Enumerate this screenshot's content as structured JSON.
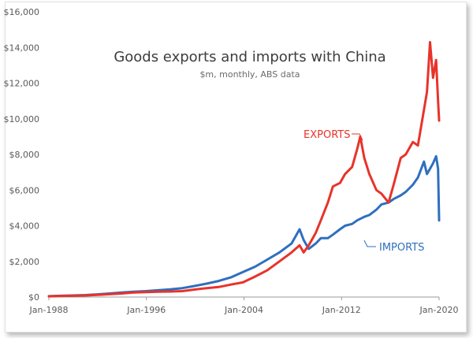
{
  "chart_data": {
    "type": "line",
    "title": "Goods exports and imports with China",
    "subtitle": "$m, monthly, ABS data",
    "xlabel": "",
    "ylabel": "",
    "x_range": [
      "1988-01",
      "2020-03"
    ],
    "ylim": [
      0,
      16000
    ],
    "y_ticks": [
      "$0",
      "$2,000",
      "$4,000",
      "$6,000",
      "$8,000",
      "$10,000",
      "$12,000",
      "$14,000",
      "$16,000"
    ],
    "x_ticks": [
      "Jan-1988",
      "Jan-1996",
      "Jan-2004",
      "Jan-2012",
      "Jan-2020"
    ],
    "grid": false,
    "legend": "inline labels",
    "colors": {
      "exports": "#e8332a",
      "imports": "#2e6fc0"
    },
    "series": [
      {
        "name": "EXPORTS",
        "points": [
          [
            "1988-01",
            40
          ],
          [
            "1989-01",
            60
          ],
          [
            "1990-01",
            70
          ],
          [
            "1991-01",
            90
          ],
          [
            "1992-01",
            120
          ],
          [
            "1993-01",
            160
          ],
          [
            "1994-01",
            200
          ],
          [
            "1995-01",
            250
          ],
          [
            "1996-01",
            280
          ],
          [
            "1997-01",
            300
          ],
          [
            "1998-01",
            310
          ],
          [
            "1999-01",
            330
          ],
          [
            "2000-01",
            420
          ],
          [
            "2001-01",
            500
          ],
          [
            "2002-01",
            560
          ],
          [
            "2003-01",
            700
          ],
          [
            "2004-01",
            820
          ],
          [
            "2005-01",
            1150
          ],
          [
            "2006-01",
            1500
          ],
          [
            "2007-01",
            2000
          ],
          [
            "2008-01",
            2500
          ],
          [
            "2008-09",
            2900
          ],
          [
            "2009-01",
            2500
          ],
          [
            "2009-06",
            2900
          ],
          [
            "2010-01",
            3600
          ],
          [
            "2010-06",
            4300
          ],
          [
            "2011-01",
            5300
          ],
          [
            "2011-06",
            6200
          ],
          [
            "2012-01",
            6400
          ],
          [
            "2012-06",
            6900
          ],
          [
            "2013-01",
            7300
          ],
          [
            "2013-06",
            8300
          ],
          [
            "2013-09",
            9000
          ],
          [
            "2014-01",
            7800
          ],
          [
            "2014-06",
            6900
          ],
          [
            "2015-01",
            6000
          ],
          [
            "2015-06",
            5800
          ],
          [
            "2016-01",
            5300
          ],
          [
            "2016-06",
            6300
          ],
          [
            "2017-01",
            7800
          ],
          [
            "2017-06",
            8000
          ],
          [
            "2018-01",
            8700
          ],
          [
            "2018-06",
            8500
          ],
          [
            "2018-12",
            10500
          ],
          [
            "2019-03",
            11500
          ],
          [
            "2019-06",
            14300
          ],
          [
            "2019-09",
            12300
          ],
          [
            "2019-12",
            13300
          ],
          [
            "2020-02",
            11000
          ],
          [
            "2020-03",
            9900
          ]
        ]
      },
      {
        "name": "IMPORTS",
        "points": [
          [
            "1988-01",
            50
          ],
          [
            "1989-01",
            70
          ],
          [
            "1990-01",
            90
          ],
          [
            "1991-01",
            110
          ],
          [
            "1992-01",
            150
          ],
          [
            "1993-01",
            200
          ],
          [
            "1994-01",
            250
          ],
          [
            "1995-01",
            300
          ],
          [
            "1996-01",
            330
          ],
          [
            "1997-01",
            380
          ],
          [
            "1998-01",
            430
          ],
          [
            "1999-01",
            500
          ],
          [
            "2000-01",
            620
          ],
          [
            "2001-01",
            750
          ],
          [
            "2002-01",
            900
          ],
          [
            "2003-01",
            1100
          ],
          [
            "2004-01",
            1400
          ],
          [
            "2005-01",
            1700
          ],
          [
            "2006-01",
            2100
          ],
          [
            "2007-01",
            2500
          ],
          [
            "2008-01",
            3000
          ],
          [
            "2008-09",
            3800
          ],
          [
            "2009-01",
            3200
          ],
          [
            "2009-06",
            2700
          ],
          [
            "2010-01",
            3000
          ],
          [
            "2010-06",
            3300
          ],
          [
            "2011-01",
            3300
          ],
          [
            "2011-06",
            3500
          ],
          [
            "2012-01",
            3800
          ],
          [
            "2012-06",
            4000
          ],
          [
            "2013-01",
            4100
          ],
          [
            "2013-06",
            4300
          ],
          [
            "2014-01",
            4500
          ],
          [
            "2014-06",
            4600
          ],
          [
            "2015-01",
            4900
          ],
          [
            "2015-06",
            5200
          ],
          [
            "2016-01",
            5300
          ],
          [
            "2016-06",
            5500
          ],
          [
            "2017-01",
            5700
          ],
          [
            "2017-06",
            5900
          ],
          [
            "2018-01",
            6300
          ],
          [
            "2018-06",
            6700
          ],
          [
            "2018-12",
            7600
          ],
          [
            "2019-03",
            6900
          ],
          [
            "2019-06",
            7200
          ],
          [
            "2019-09",
            7500
          ],
          [
            "2019-12",
            7900
          ],
          [
            "2020-02",
            7200
          ],
          [
            "2020-03",
            4300
          ]
        ]
      }
    ]
  }
}
